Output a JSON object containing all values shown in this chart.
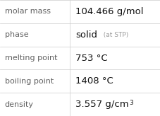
{
  "rows": [
    {
      "label": "molar mass",
      "value_parts": [
        {
          "text": "104.466 g/mol",
          "style": "normal"
        }
      ]
    },
    {
      "label": "phase",
      "value_parts": [
        {
          "text": "solid",
          "style": "normal"
        },
        {
          "text": "  (at STP)",
          "style": "small"
        }
      ]
    },
    {
      "label": "melting point",
      "value_parts": [
        {
          "text": "753 °C",
          "style": "normal"
        }
      ]
    },
    {
      "label": "boiling point",
      "value_parts": [
        {
          "text": "1408 °C",
          "style": "normal"
        }
      ]
    },
    {
      "label": "density",
      "value_parts": [
        {
          "text": "3.557 g/cm",
          "style": "normal"
        },
        {
          "text": "3",
          "style": "super"
        }
      ]
    }
  ],
  "background_color": "#ffffff",
  "line_color": "#cccccc",
  "label_color": "#606060",
  "value_color": "#111111",
  "small_color": "#999999",
  "label_fontsize": 8.0,
  "value_fontsize": 9.5,
  "small_fontsize": 6.5,
  "super_fontsize": 6.5,
  "col_split": 0.435
}
